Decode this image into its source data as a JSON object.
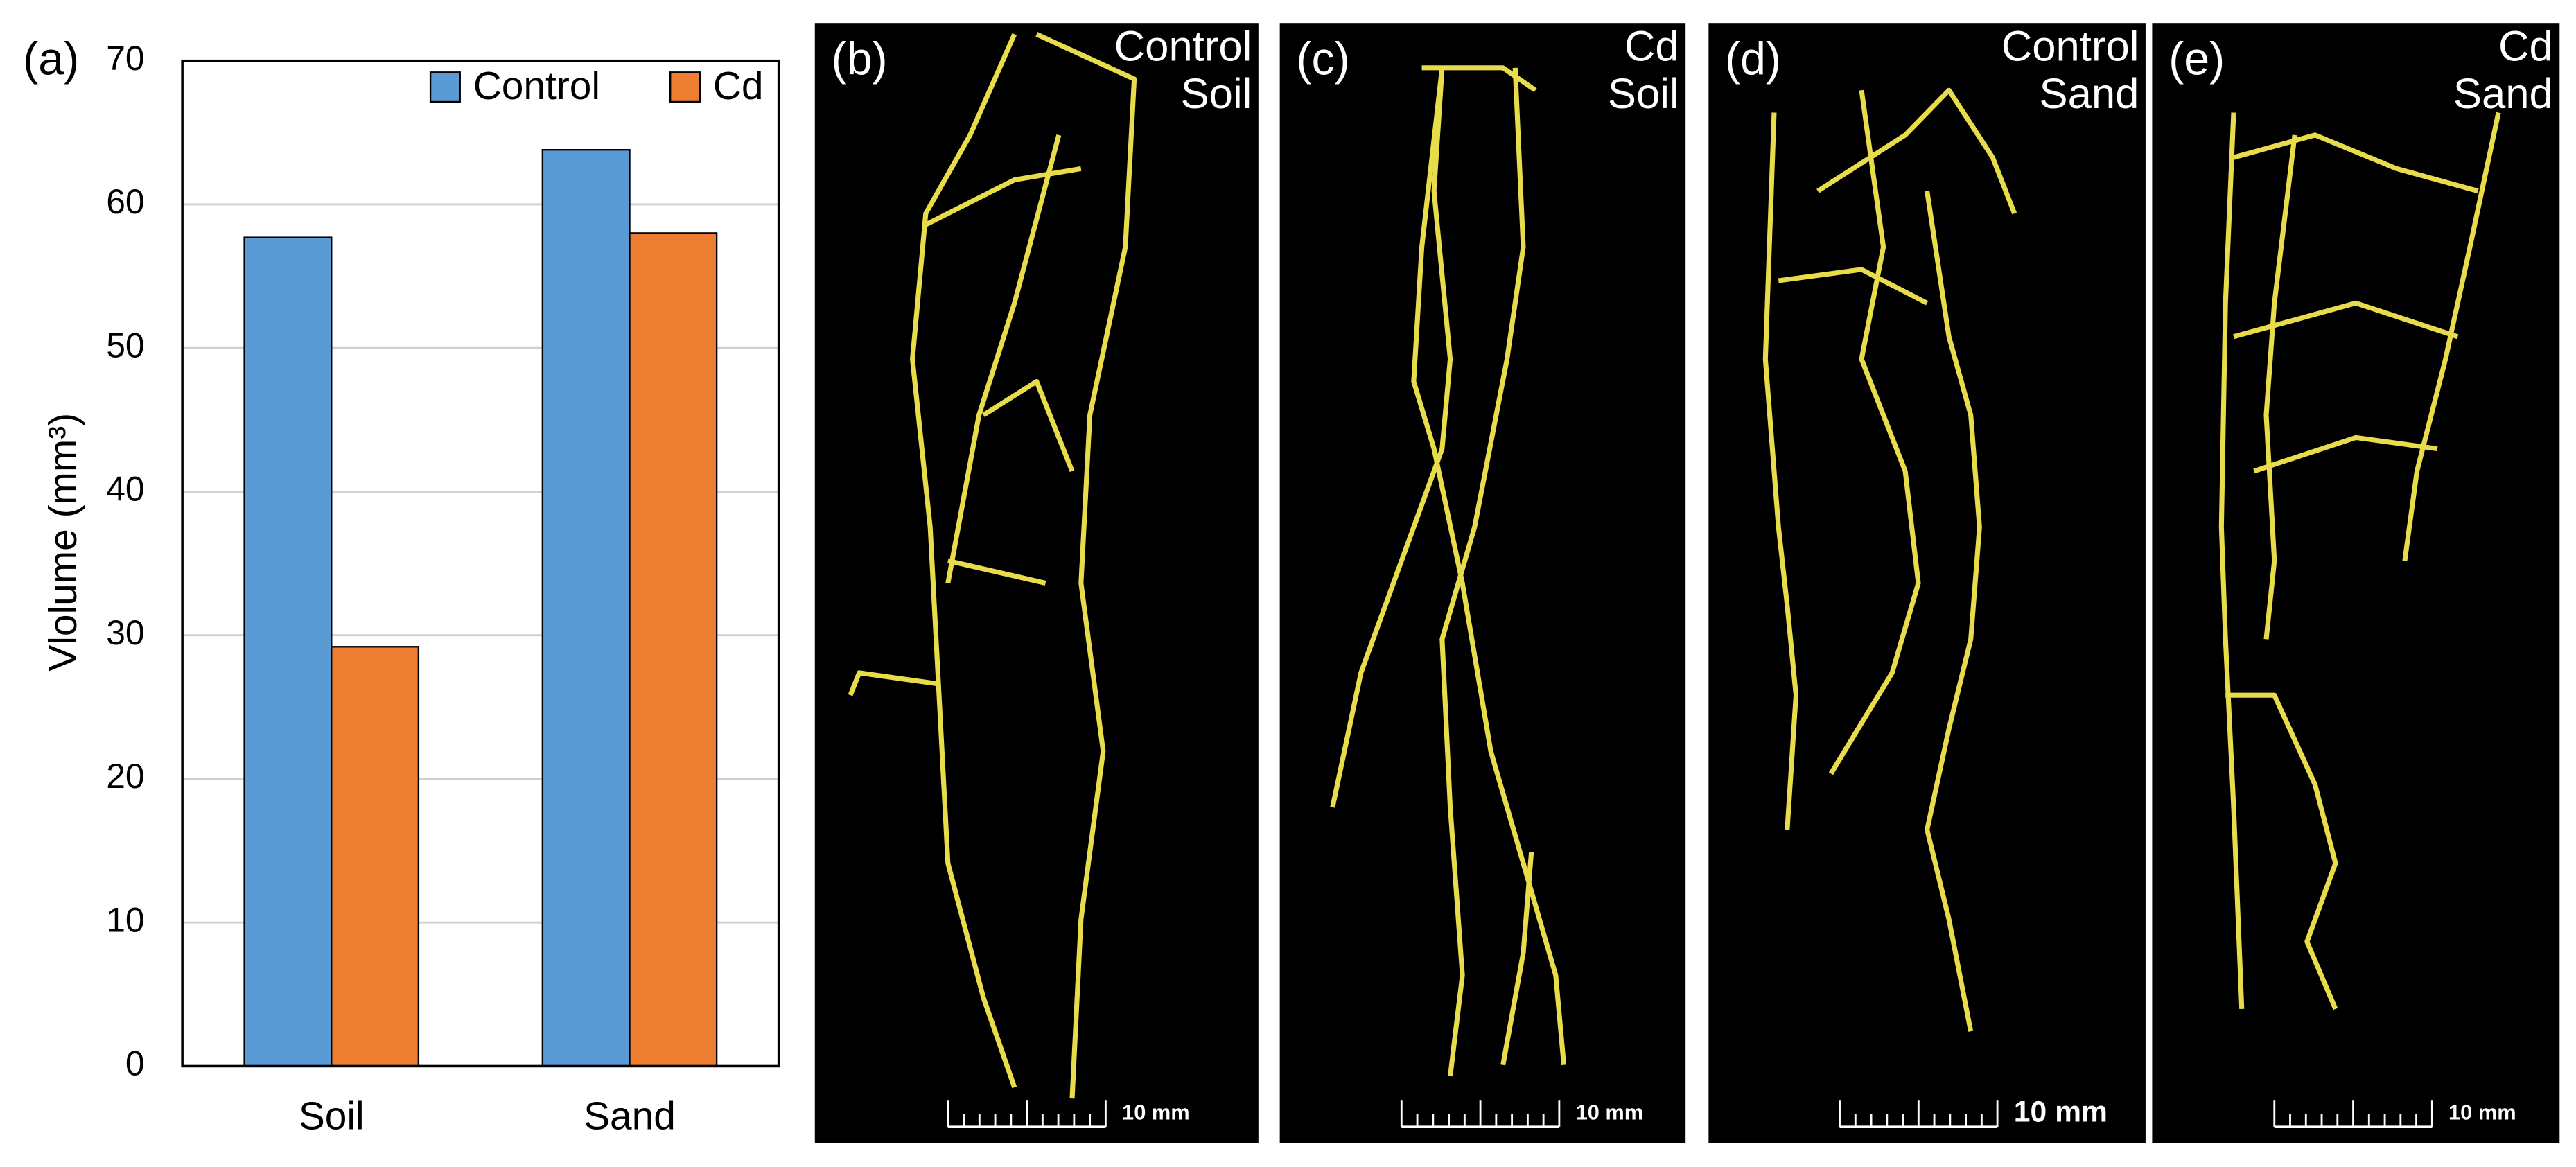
{
  "chart_data": {
    "type": "bar",
    "panel_label": "(a)",
    "y_label": "Vlolume (mm³)",
    "categories": [
      "Soil",
      "Sand"
    ],
    "series": [
      {
        "name": "Control",
        "color": "#5b9bd5",
        "values": [
          57.7,
          63.8
        ]
      },
      {
        "name": "Cd",
        "color": "#ed7d31",
        "values": [
          29.2,
          58.0
        ]
      }
    ],
    "ylim": [
      0,
      70
    ],
    "yticks": [
      0,
      10,
      20,
      30,
      40,
      50,
      60,
      70
    ],
    "grid": true,
    "legend": "top-right"
  },
  "panels": [
    {
      "label": "(b)",
      "treatment": [
        "Control",
        "Soil"
      ],
      "scale": "10 mm"
    },
    {
      "label": "(c)",
      "treatment": [
        "Cd",
        "Soil"
      ],
      "scale": "10 mm"
    },
    {
      "label": "(d)",
      "treatment": [
        "Control",
        "Sand"
      ],
      "scale": "10 mm"
    },
    {
      "label": "(e)",
      "treatment": [
        "Cd",
        "Sand"
      ],
      "scale": "10 mm"
    }
  ]
}
